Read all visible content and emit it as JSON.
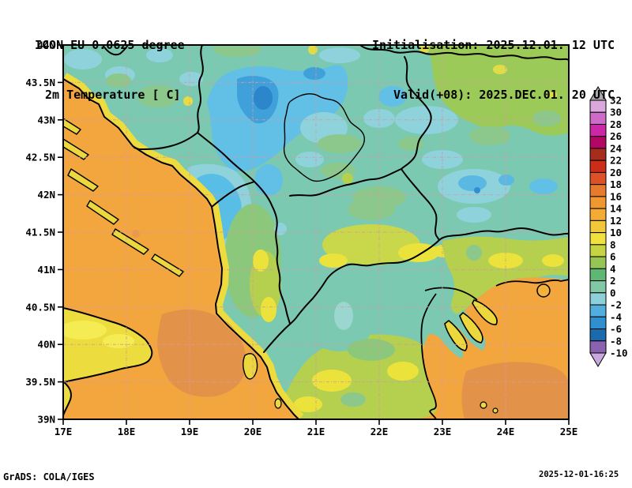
{
  "header": {
    "line1": "ICON EU 0.0625 degree",
    "line2": "2m Temperature [ C]",
    "init": "Initialisation: 2025.12.01. 12 UTC",
    "valid": "Valid(+08): 2025.DEC.01. 20 UTC"
  },
  "axes": {
    "x_labels": [
      "17E",
      "18E",
      "19E",
      "20E",
      "21E",
      "22E",
      "23E",
      "24E",
      "25E"
    ],
    "y_labels": [
      "44N",
      "43.5N",
      "43N",
      "42.5N",
      "42N",
      "41.5N",
      "41N",
      "40.5N",
      "40N",
      "39.5N",
      "39N"
    ]
  },
  "colorbar": {
    "title_units": "C",
    "labels": [
      "32",
      "30",
      "28",
      "26",
      "24",
      "22",
      "20",
      "18",
      "16",
      "14",
      "12",
      "10",
      "8",
      "6",
      "4",
      "2",
      "0",
      "-2",
      "-4",
      "-6",
      "-8",
      "-10"
    ],
    "segment_colors": [
      "#d9a8dc",
      "#cc6cc8",
      "#cb28a8",
      "#b30766",
      "#a62c1e",
      "#cc2d18",
      "#dd5126",
      "#e67a2e",
      "#ef9830",
      "#f3ab33",
      "#f2c83a",
      "#f0e13c",
      "#c6d443",
      "#96c455",
      "#5eb873",
      "#82c8a4",
      "#8dd0da",
      "#52aede",
      "#2f8fcf",
      "#1a6aad",
      "#8a62b0"
    ],
    "above_max_color": "#a9a9a9",
    "below_min_color": "#c9a8dd"
  },
  "map_theme": {
    "grid_color": "#d49aa2",
    "border_color": "#000000",
    "sea_warm": "#f3a63e",
    "sea_warmer": "#e3924a",
    "land_base": "#7cc9b1",
    "cold_patch": "#3fa0da"
  },
  "footer": {
    "left": "GrADS: COLA/IGES",
    "right": "2025-12-01-16:25"
  }
}
